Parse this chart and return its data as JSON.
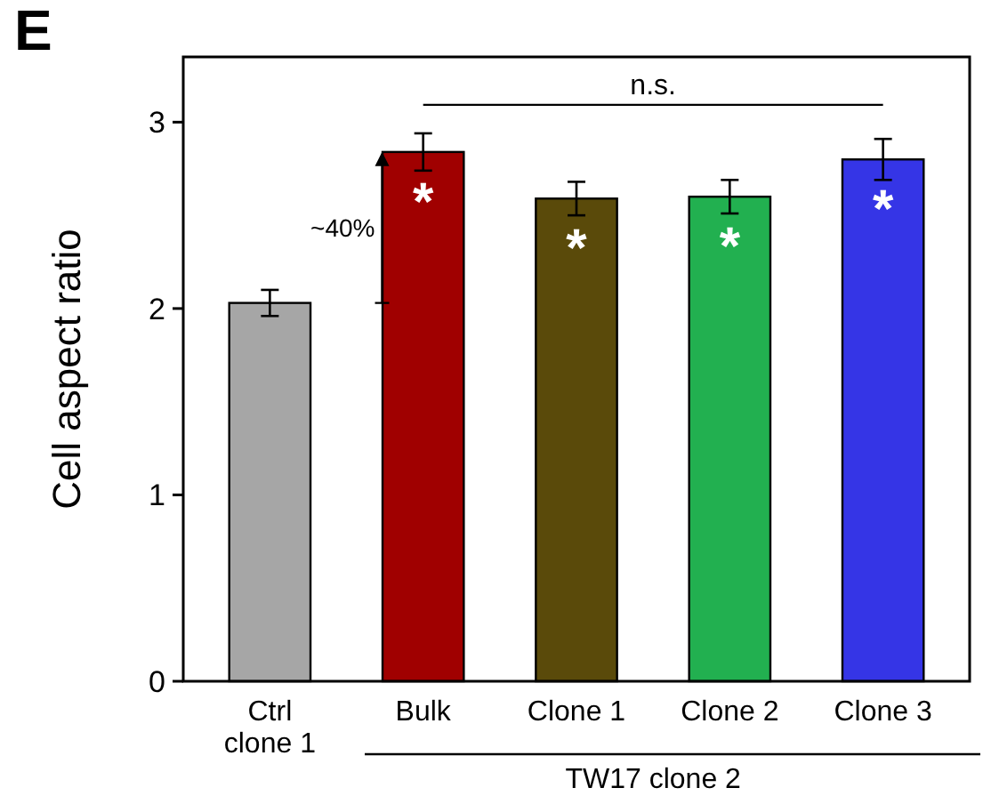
{
  "chart_data": {
    "type": "bar",
    "ylabel": "Cell aspect ratio",
    "categories": [
      "Ctrl\nclone 1",
      "Bulk",
      "Clone 1",
      "Clone 2",
      "Clone 3"
    ],
    "values": [
      2.03,
      2.84,
      2.59,
      2.6,
      2.8
    ],
    "errors": [
      0.07,
      0.1,
      0.09,
      0.09,
      0.11
    ],
    "colors": [
      "#a6a6a6",
      "#a00000",
      "#5a4a0a",
      "#22b050",
      "#3535e6"
    ],
    "ylim": [
      0,
      3.35
    ],
    "yticks": [
      0,
      1,
      2,
      3
    ],
    "grid": false,
    "annotations": [
      "E",
      "~40%",
      "n.s.",
      "TW17 clone 2",
      "*",
      "*",
      "*",
      "*"
    ]
  }
}
